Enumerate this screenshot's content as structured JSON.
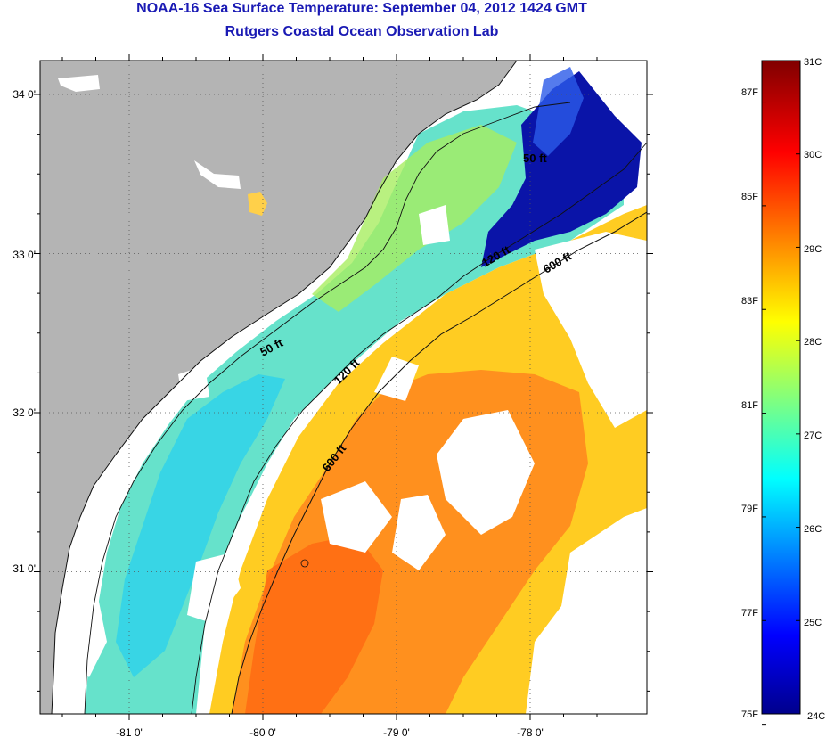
{
  "header": {
    "title": "NOAA-16 Sea Surface Temperature:  September 04, 2012 1424 GMT",
    "subtitle": "Rutgers Coastal Ocean Observation Lab"
  },
  "map": {
    "lat_ticks": [
      {
        "value": 34,
        "label": "34 0'"
      },
      {
        "value": 33,
        "label": "33 0'"
      },
      {
        "value": 32,
        "label": "32 0'"
      },
      {
        "value": 31,
        "label": "31 0'"
      }
    ],
    "lon_ticks": [
      {
        "value": -81,
        "label": "-81 0'"
      },
      {
        "value": -80,
        "label": "-80 0'"
      },
      {
        "value": -79,
        "label": "-79 0'"
      },
      {
        "value": -78,
        "label": "-78 0'"
      }
    ],
    "contour_labels": [
      {
        "text": "50 ft",
        "id": "contour-50ft-north"
      },
      {
        "text": "50 ft",
        "id": "contour-50ft-south"
      },
      {
        "text": "120 ft",
        "id": "contour-120ft-north"
      },
      {
        "text": "120 ft",
        "id": "contour-120ft-south"
      },
      {
        "text": "600 ft",
        "id": "contour-600ft-north"
      },
      {
        "text": "600 ft",
        "id": "contour-600ft-south"
      }
    ],
    "colors": {
      "land": "#b4b4b4",
      "cloud": "#ffffff",
      "cold": "#0a0aa0",
      "cool": "#14d2e6",
      "mid": "#a0f050",
      "warm": "#ffd21e",
      "hot": "#ff6e14"
    }
  },
  "colorbar": {
    "min_c": 24,
    "max_c": 31,
    "celsius_labels": [
      "31C",
      "30C",
      "29C",
      "28C",
      "27C",
      "26C",
      "25C",
      "24C"
    ],
    "fahrenheit_labels": [
      "87F",
      "85F",
      "83F",
      "81F",
      "79F",
      "77F",
      "75F"
    ],
    "fahrenheit_values": [
      87,
      85,
      83,
      81,
      79,
      77,
      75
    ]
  }
}
